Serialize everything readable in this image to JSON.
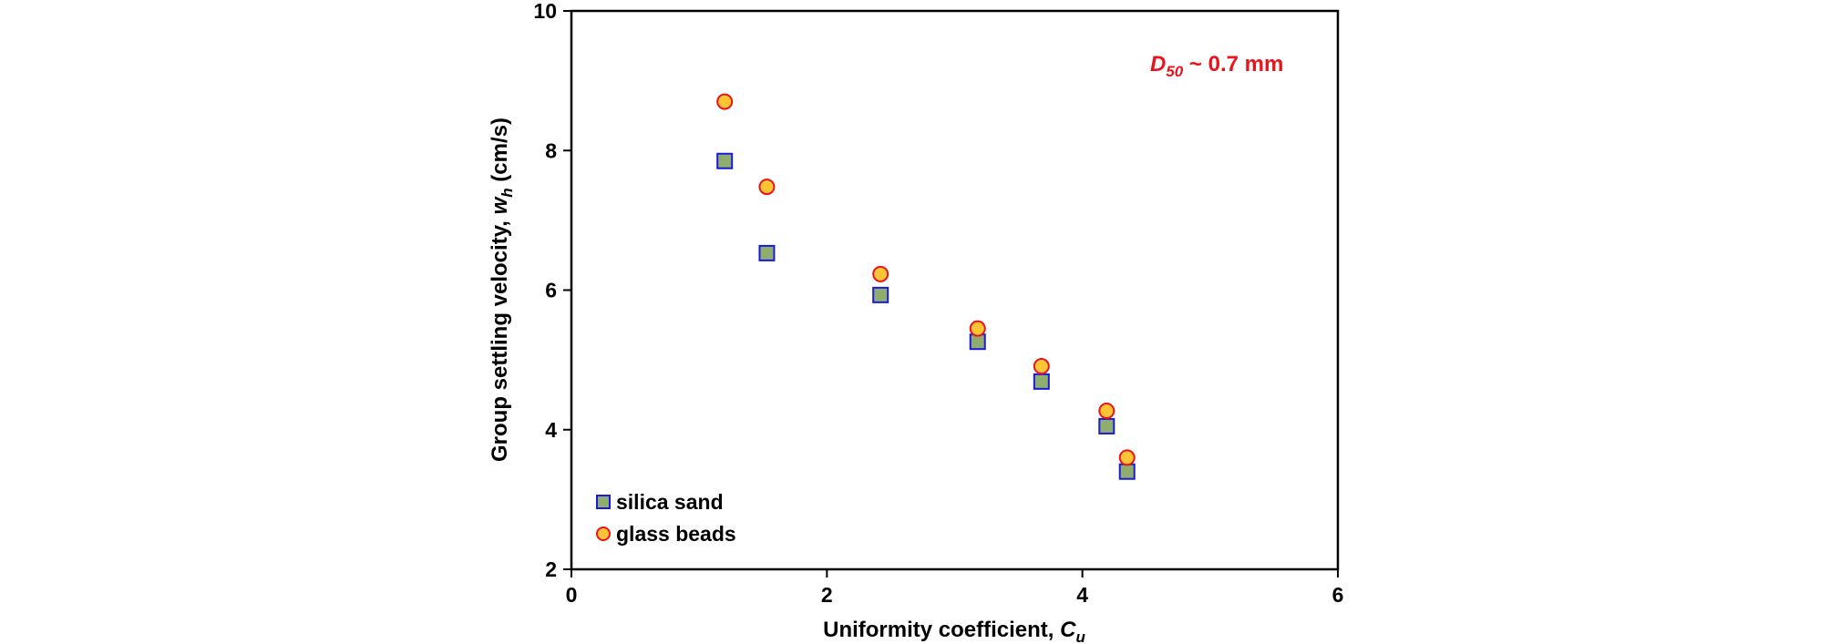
{
  "chart_data": {
    "type": "scatter",
    "title": "",
    "xlabel": "Uniformity coefficient, ",
    "xlabel_sub": "C",
    "xlabel_sub_index": "u",
    "ylabel": "Group settling velocity, ",
    "ylabel_var": "w",
    "ylabel_var_index": "h",
    "ylabel_unit": " (cm/s)",
    "xlim": [
      0,
      6
    ],
    "ylim": [
      2,
      10
    ],
    "x_ticks": [
      0,
      2,
      4,
      6
    ],
    "y_ticks": [
      2,
      4,
      6,
      8,
      10
    ],
    "grid": false,
    "legend_position": "bottom-left",
    "annotation": {
      "var": "D",
      "var_index": "50",
      "text": " ~ 0.7 mm",
      "color": "#e8141b"
    },
    "series": [
      {
        "name": "silica sand",
        "marker": "square",
        "fill": "#8fad6e",
        "stroke": "#1a1adf",
        "x": [
          1.2,
          1.53,
          2.42,
          3.18,
          3.68,
          4.19,
          4.35
        ],
        "y": [
          7.85,
          6.53,
          5.93,
          5.26,
          4.69,
          4.05,
          3.4
        ]
      },
      {
        "name": "glass beads",
        "marker": "circle",
        "fill": "#fdc436",
        "stroke": "#e8141b",
        "x": [
          1.2,
          1.53,
          2.42,
          3.18,
          3.68,
          4.19,
          4.35
        ],
        "y": [
          8.7,
          7.48,
          6.23,
          5.45,
          4.91,
          4.27,
          3.6
        ]
      }
    ]
  }
}
